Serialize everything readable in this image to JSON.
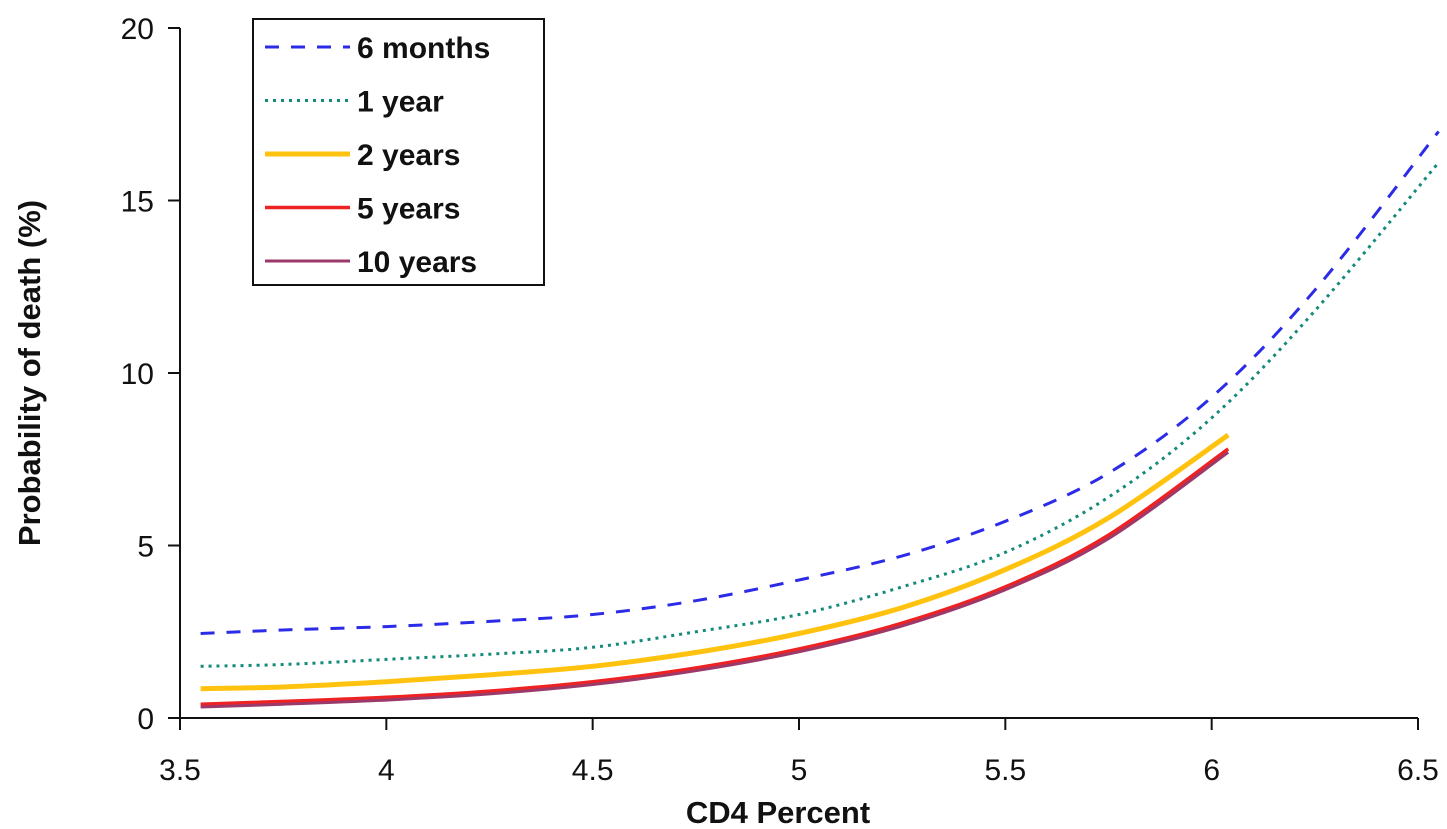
{
  "chart_data": {
    "type": "line",
    "title": "",
    "xlabel": "CD4 Percent",
    "ylabel": "Probability of death (%)",
    "xlim": [
      3.5,
      6.5
    ],
    "ylim": [
      0,
      20
    ],
    "xticks": [
      3.5,
      4,
      4.5,
      5,
      5.5,
      6,
      6.5
    ],
    "yticks": [
      0,
      5,
      10,
      15,
      20
    ],
    "xtick_labels": [
      "3.5",
      "4",
      "4.5",
      "5",
      "5.5",
      "6",
      "6.5"
    ],
    "ytick_labels": [
      "0",
      "5",
      "10",
      "15",
      "20"
    ],
    "grid": false,
    "legend_position": "top-left",
    "series": [
      {
        "name": "6 months",
        "color": "#2b2be8",
        "style": "dashed",
        "x": [
          3.55,
          3.75,
          4.0,
          4.25,
          4.5,
          4.75,
          5.0,
          5.25,
          5.5,
          5.75,
          6.0,
          6.25,
          6.55
        ],
        "y": [
          2.45,
          2.55,
          2.65,
          2.8,
          3.0,
          3.4,
          4.0,
          4.7,
          5.7,
          7.1,
          9.3,
          12.4,
          17.0
        ]
      },
      {
        "name": "1 year",
        "color": "#138a7a",
        "style": "dotted",
        "x": [
          3.55,
          3.75,
          4.0,
          4.25,
          4.5,
          4.75,
          5.0,
          5.25,
          5.5,
          5.75,
          6.0,
          6.25,
          6.55
        ],
        "y": [
          1.5,
          1.55,
          1.7,
          1.85,
          2.05,
          2.5,
          3.0,
          3.8,
          4.8,
          6.4,
          8.7,
          11.8,
          16.1
        ]
      },
      {
        "name": "2 years",
        "color": "#ffc20e",
        "style": "solid",
        "x": [
          3.55,
          3.75,
          4.0,
          4.25,
          4.5,
          4.75,
          5.0,
          5.25,
          5.5,
          5.75,
          6.04
        ],
        "y": [
          0.85,
          0.9,
          1.05,
          1.25,
          1.5,
          1.9,
          2.45,
          3.2,
          4.3,
          5.8,
          8.2
        ]
      },
      {
        "name": "5 years",
        "color": "#ee2222",
        "style": "solid",
        "x": [
          3.55,
          3.75,
          4.0,
          4.25,
          4.5,
          4.75,
          5.0,
          5.25,
          5.5,
          5.75,
          6.04
        ],
        "y": [
          0.4,
          0.48,
          0.6,
          0.78,
          1.05,
          1.45,
          2.0,
          2.75,
          3.8,
          5.3,
          7.8
        ]
      },
      {
        "name": "10 years",
        "color": "#9b3a6a",
        "style": "solid",
        "x": [
          3.55,
          3.75,
          4.0,
          4.25,
          4.5,
          4.75,
          5.0,
          5.25,
          5.5,
          5.75,
          6.04
        ],
        "y": [
          0.32,
          0.4,
          0.52,
          0.7,
          0.97,
          1.37,
          1.92,
          2.67,
          3.72,
          5.2,
          7.7
        ]
      }
    ]
  }
}
